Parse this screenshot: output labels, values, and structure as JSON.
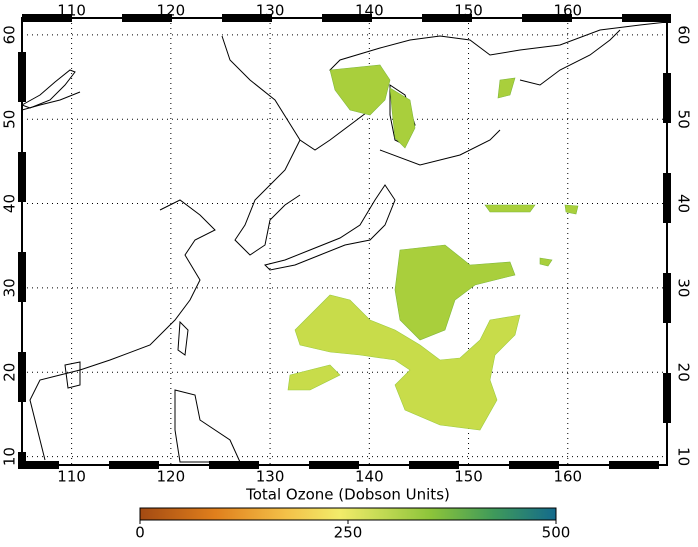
{
  "map": {
    "lon_range": [
      105,
      170
    ],
    "lat_range": [
      9,
      62
    ],
    "lon_ticks": [
      110,
      120,
      130,
      140,
      150,
      160
    ],
    "lat_ticks": [
      10,
      20,
      30,
      40,
      50,
      60
    ],
    "grid": true
  },
  "colorbar": {
    "label": "Total Ozone (Dobson Units)",
    "range": [
      0,
      500
    ],
    "ticks": [
      0,
      250,
      500
    ]
  }
}
